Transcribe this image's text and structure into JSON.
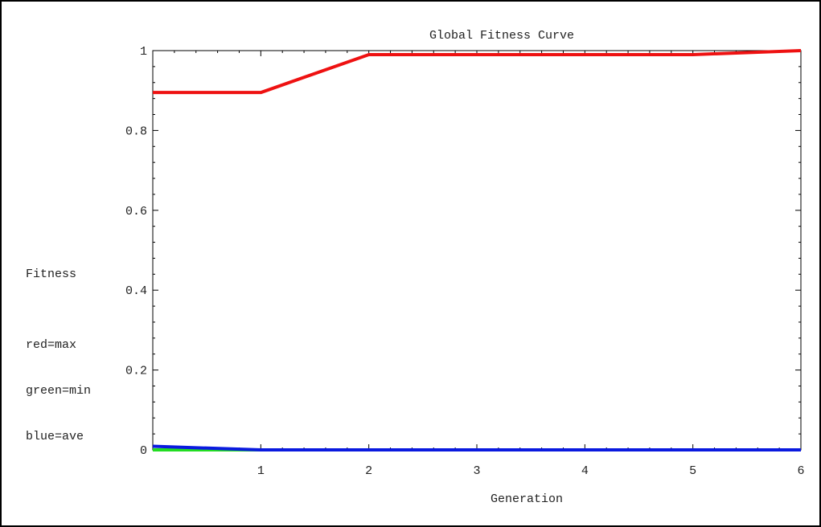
{
  "chart_data": {
    "type": "line",
    "title": "Global Fitness Curve",
    "xlabel": "Generation",
    "ylabel": "Fitness",
    "legend_note": [
      "red=max",
      "green=min",
      "blue=ave"
    ],
    "xlim": [
      0,
      6
    ],
    "ylim": [
      0,
      1
    ],
    "x_ticks": [
      1,
      2,
      3,
      4,
      5,
      6
    ],
    "y_ticks": [
      0,
      0.2,
      0.4,
      0.6,
      0.8,
      1
    ],
    "y_tick_labels": [
      "0",
      "0.2",
      "0.4",
      "0.6",
      "0.8",
      "1"
    ],
    "x": [
      0,
      1,
      2,
      3,
      4,
      5,
      6
    ],
    "series": [
      {
        "color": "#ee1111",
        "values": [
          0.895,
          0.895,
          0.99,
          0.99,
          0.99,
          0.99,
          1.0
        ]
      },
      {
        "color": "#22dd22",
        "values": [
          0.0,
          0.0,
          0.0,
          0.0,
          0.0,
          0.0,
          0.0
        ]
      },
      {
        "color": "#0a1adf",
        "values": [
          0.009,
          0.0,
          0.0,
          0.0,
          0.0,
          0.0,
          0.0
        ]
      }
    ],
    "grid": false
  }
}
